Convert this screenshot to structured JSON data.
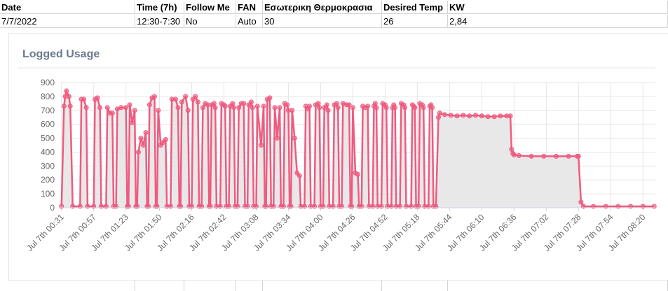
{
  "table": {
    "headers": [
      "Date",
      "Time (7h)",
      "Follow Me",
      "FAN",
      "Εσωτερικη Θερμοκρασια",
      "Desired Temp",
      "KW"
    ],
    "rows": [
      [
        "7/7/2022",
        "12:30-7:30",
        "No",
        "Auto",
        "30",
        "26",
        "2,84"
      ]
    ]
  },
  "chart_data": {
    "type": "line",
    "title": "Logged Usage",
    "color": "#ef5b7f",
    "fill": "#e5e5e5",
    "grid": true,
    "x": [
      31,
      33,
      34,
      35,
      37,
      38,
      40,
      46,
      47,
      49,
      51,
      52,
      57,
      58,
      60,
      62,
      63,
      67,
      68,
      70,
      72,
      73,
      75,
      76,
      79,
      83,
      84,
      85,
      86,
      88,
      90,
      91,
      92,
      93,
      95,
      97,
      99,
      100,
      101,
      102,
      104,
      106,
      107,
      108,
      109,
      111,
      113,
      115,
      116,
      119,
      120,
      123,
      125,
      126,
      127,
      128,
      131,
      133,
      134,
      136,
      137,
      139,
      141,
      142,
      144,
      145,
      147,
      149,
      150,
      151,
      152,
      154,
      155,
      156,
      159,
      160,
      162,
      163,
      164,
      166,
      167,
      169,
      170,
      171,
      173,
      174,
      176,
      178,
      179,
      181,
      182,
      184,
      185,
      186,
      188,
      189,
      192,
      194,
      195,
      196,
      197,
      199,
      200,
      202,
      203,
      205,
      207,
      208,
      210,
      211,
      213,
      214,
      215,
      216,
      217,
      219,
      221,
      223,
      224,
      227,
      228,
      230,
      231,
      232,
      235,
      236,
      238,
      239,
      240,
      242,
      243,
      245,
      246,
      247,
      250,
      251,
      253,
      254,
      255,
      257,
      258,
      261,
      263,
      264,
      265,
      266,
      268,
      270,
      271,
      273,
      274,
      276,
      278,
      279,
      282,
      283,
      284,
      285,
      286,
      289,
      290,
      292,
      293,
      294,
      297,
      298,
      299,
      300,
      301,
      304,
      305,
      307,
      308,
      309,
      313,
      314,
      315,
      316,
      317,
      319,
      320,
      322,
      323,
      324,
      327,
      328,
      329,
      330,
      331,
      333,
      335,
      336,
      340,
      345,
      350,
      355,
      360,
      365,
      370,
      375,
      380,
      385,
      390,
      393,
      394,
      395,
      396,
      400,
      410,
      420,
      430,
      440,
      447,
      448,
      450,
      452,
      460,
      470,
      480,
      490,
      500,
      509
    ],
    "values": [
      10,
      730,
      800,
      840,
      800,
      730,
      10,
      10,
      780,
      780,
      720,
      10,
      10,
      780,
      790,
      720,
      10,
      10,
      720,
      680,
      680,
      10,
      10,
      710,
      720,
      720,
      10,
      10,
      740,
      610,
      700,
      10,
      10,
      400,
      500,
      450,
      540,
      10,
      10,
      740,
      790,
      800,
      10,
      10,
      700,
      450,
      470,
      490,
      10,
      10,
      780,
      780,
      720,
      10,
      10,
      760,
      800,
      700,
      10,
      10,
      780,
      800,
      760,
      10,
      10,
      720,
      750,
      740,
      10,
      10,
      740,
      750,
      720,
      10,
      10,
      750,
      740,
      730,
      10,
      10,
      730,
      750,
      720,
      10,
      10,
      720,
      750,
      750,
      10,
      10,
      740,
      760,
      720,
      10,
      10,
      730,
      450,
      730,
      10,
      10,
      780,
      790,
      10,
      10,
      720,
      500,
      720,
      10,
      10,
      750,
      740,
      700,
      10,
      10,
      700,
      500,
      250,
      230,
      10,
      10,
      730,
      710,
      730,
      10,
      10,
      740,
      750,
      720,
      10,
      10,
      720,
      740,
      700,
      10,
      10,
      740,
      750,
      720,
      10,
      10,
      750,
      740,
      740,
      10,
      10,
      720,
      250,
      240,
      10,
      10,
      730,
      720,
      730,
      10,
      10,
      730,
      750,
      720,
      10,
      10,
      750,
      740,
      720,
      10,
      10,
      720,
      740,
      720,
      10,
      10,
      750,
      740,
      720,
      10,
      10,
      740,
      730,
      720,
      10,
      10,
      750,
      740,
      720,
      10,
      10,
      730,
      740,
      720,
      10,
      10,
      650,
      680,
      670,
      665,
      660,
      665,
      660,
      665,
      660,
      655,
      655,
      660,
      660,
      660,
      420,
      390,
      380,
      375,
      370,
      370,
      370,
      370,
      370,
      370,
      40,
      10,
      10,
      10,
      10,
      10,
      10,
      10
    ],
    "xlim": [
      30,
      510
    ],
    "xticks": [
      {
        "value": 31,
        "label": "Jul 7th 00:31"
      },
      {
        "value": 57,
        "label": "Jul 7th 00:57"
      },
      {
        "value": 83,
        "label": "Jul 7th 01:23"
      },
      {
        "value": 110,
        "label": "Jul 7th 01:50"
      },
      {
        "value": 136,
        "label": "Jul 7th 02:16"
      },
      {
        "value": 162,
        "label": "Jul 7th 02:42"
      },
      {
        "value": 188,
        "label": "Jul 7th 03:08"
      },
      {
        "value": 214,
        "label": "Jul 7th 03:34"
      },
      {
        "value": 240,
        "label": "Jul 7th 04:00"
      },
      {
        "value": 266,
        "label": "Jul 7th 04:26"
      },
      {
        "value": 292,
        "label": "Jul 7th 04:52"
      },
      {
        "value": 318,
        "label": "Jul 7th 05:18"
      },
      {
        "value": 344,
        "label": "Jul 7th 05:44"
      },
      {
        "value": 370,
        "label": "Jul 7th 06:10"
      },
      {
        "value": 396,
        "label": "Jul 7th 06:36"
      },
      {
        "value": 422,
        "label": "Jul 7th 07:02"
      },
      {
        "value": 448,
        "label": "Jul 7th 07:28"
      },
      {
        "value": 474,
        "label": "Jul 7th 07:54"
      },
      {
        "value": 500,
        "label": "Jul 7th 08:20"
      }
    ],
    "ylim": [
      0,
      900
    ],
    "yticks": [
      0,
      100,
      200,
      300,
      400,
      500,
      600,
      700,
      800,
      900
    ]
  }
}
